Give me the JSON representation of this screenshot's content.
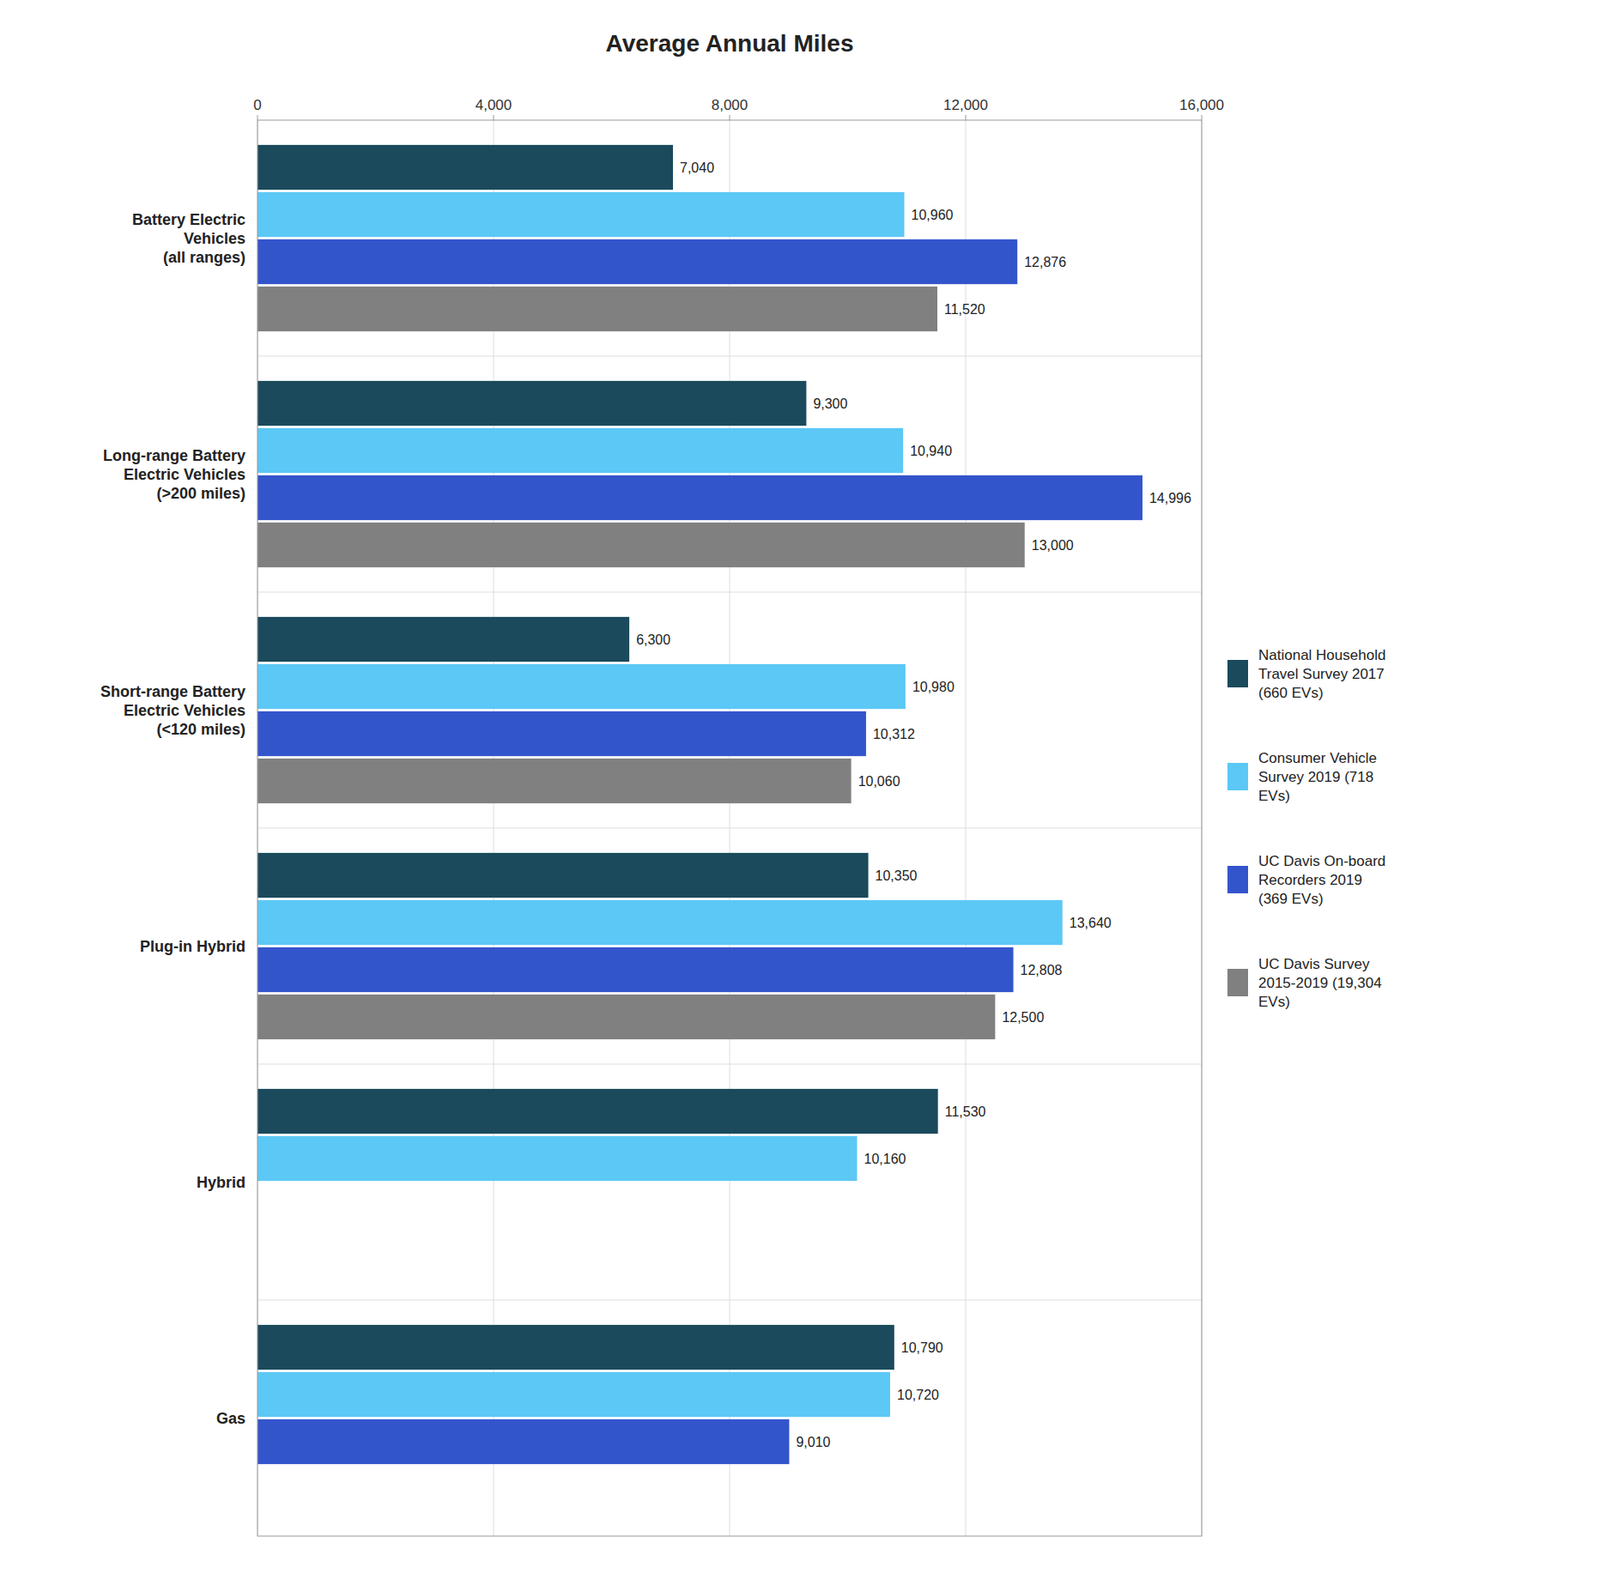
{
  "chart_data": {
    "type": "bar",
    "orientation": "horizontal",
    "title": "Average Annual Miles",
    "categories": [
      "Battery Electric\nVehicles\n(all ranges)",
      "Long-range Battery\nElectric Vehicles\n(>200 miles)",
      "Short-range Battery\nElectric Vehicles\n(<120 miles)",
      "Plug-in Hybrid",
      "Hybrid",
      "Gas"
    ],
    "series": [
      {
        "name": "National Household\nTravel Survey 2017\n(660 EVs)",
        "color": "#1a4a5c",
        "values": [
          7040,
          9300,
          6300,
          10350,
          11530,
          10790
        ],
        "value_labels": [
          "7,040",
          "9,300",
          "6,300",
          "10,350",
          "11,530",
          "10,790"
        ]
      },
      {
        "name": "Consumer Vehicle\nSurvey 2019 (718\nEVs)",
        "color": "#5bc8f5",
        "values": [
          10960,
          10940,
          10980,
          13640,
          10160,
          10720
        ],
        "value_labels": [
          "10,960",
          "10,940",
          "10,980",
          "13,640",
          "10,160",
          "10,720"
        ]
      },
      {
        "name": "UC Davis On-board\nRecorders 2019\n(369 EVs)",
        "color": "#3355cc",
        "values": [
          12876,
          14996,
          10312,
          12808,
          null,
          9010
        ],
        "value_labels": [
          "12,876",
          "14,996",
          "10,312",
          "12,808",
          null,
          "9,010"
        ]
      },
      {
        "name": "UC Davis Survey\n2015-2019 (19,304\nEVs)",
        "color": "#808080",
        "values": [
          11520,
          13000,
          10060,
          12500,
          null,
          null
        ],
        "value_labels": [
          "11,520",
          "13,000",
          "10,060",
          "12,500",
          null,
          null
        ]
      }
    ],
    "xlim": [
      0,
      16000
    ],
    "xticks": [
      0,
      {
        "value": 4000,
        "label": "4,000"
      },
      {
        "value": 8000,
        "label": "8,000"
      },
      {
        "value": 12000,
        "label": "12,000"
      },
      {
        "value": 16000,
        "label": "16,000"
      }
    ],
    "grid": true,
    "legend": "right",
    "data_labels": true
  }
}
